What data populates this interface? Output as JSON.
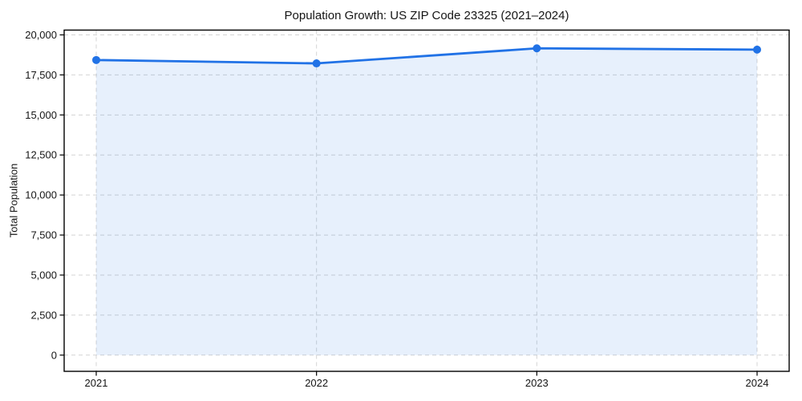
{
  "chart_data": {
    "type": "line",
    "title": "Population Growth: US ZIP Code 23325 (2021–2024)",
    "xlabel": "",
    "ylabel": "Total Population",
    "categories": [
      "2021",
      "2022",
      "2023",
      "2024"
    ],
    "series": [
      {
        "name": "Total Population",
        "values": [
          18430,
          18220,
          19160,
          19080
        ]
      }
    ],
    "ylim": [
      0,
      20000
    ],
    "yticks": [
      0,
      2500,
      5000,
      7500,
      10000,
      12500,
      15000,
      17500,
      20000
    ],
    "ytick_labels": [
      "0",
      "2,500",
      "5,000",
      "7,500",
      "10,000",
      "12,500",
      "15,000",
      "17,500",
      "20,000"
    ],
    "grid": "dashed, both axes, major only",
    "legend": "none",
    "marker": "circle",
    "area_fill_to_zero": true,
    "colors": {
      "line": "#2172e6",
      "marker": "#2172e6",
      "area_fill": "rgba(33,114,229,0.11)",
      "grid": "#d4d4d4",
      "spine": "#000000",
      "text": "#151515",
      "background": "#ffffff"
    }
  }
}
